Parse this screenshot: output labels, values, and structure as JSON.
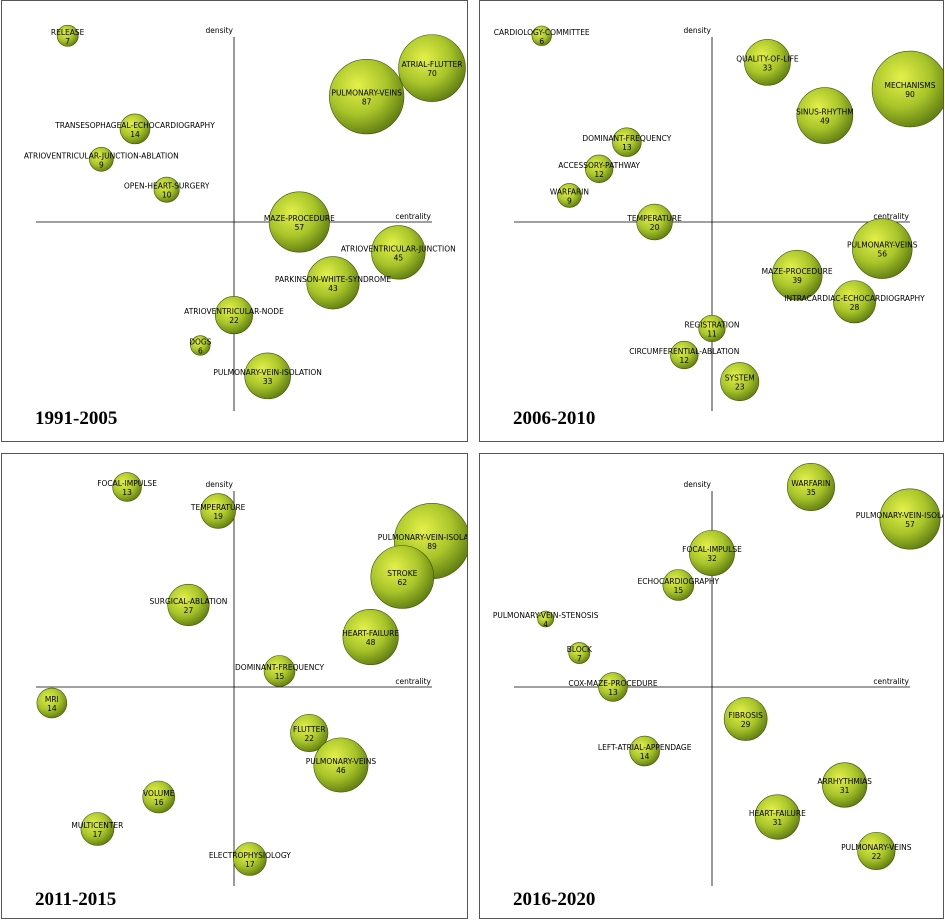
{
  "colors": {
    "bubble_inner": "#e4f04a",
    "bubble_mid": "#a9c52a",
    "bubble_outer": "#5d7a10",
    "bubble_stroke": "#3e5208",
    "axis": "#000000"
  },
  "chart_data": [
    {
      "type": "scatter",
      "title": "1991-2005",
      "xlabel": "centrality",
      "ylabel": "density",
      "points": [
        {
          "label": "RELEASE",
          "value": 7,
          "x": -0.84,
          "y": 0.98
        },
        {
          "label": "ATRIAL-FLUTTER",
          "value": 70,
          "x": 1.0,
          "y": 0.81
        },
        {
          "label": "PULMONARY-VEINS",
          "value": 87,
          "x": 0.67,
          "y": 0.66
        },
        {
          "label": "TRANSESOPHAGEAL-ECHOCARDIOGRAPHY",
          "value": 14,
          "x": -0.5,
          "y": 0.49
        },
        {
          "label": "ATRIOVENTRICULAR-JUNCTION-ABLATION",
          "value": 9,
          "x": -0.67,
          "y": 0.33
        },
        {
          "label": "OPEN-HEART-SURGERY",
          "value": 10,
          "x": -0.34,
          "y": 0.17
        },
        {
          "label": "MAZE-PROCEDURE",
          "value": 57,
          "x": 0.33,
          "y": 0.0
        },
        {
          "label": "ATRIOVENTRICULAR-JUNCTION",
          "value": 45,
          "x": 0.83,
          "y": -0.16
        },
        {
          "label": "PARKINSON-WHITE-SYNDROME",
          "value": 43,
          "x": 0.5,
          "y": -0.32
        },
        {
          "label": "ATRIOVENTRICULAR-NODE",
          "value": 22,
          "x": 0.0,
          "y": -0.49
        },
        {
          "label": "DOGS",
          "value": 6,
          "x": -0.17,
          "y": -0.65
        },
        {
          "label": "PULMONARY-VEIN-ISOLATION",
          "value": 33,
          "x": 0.17,
          "y": -0.81
        }
      ]
    },
    {
      "type": "scatter",
      "title": "2006-2010",
      "xlabel": "centrality",
      "ylabel": "density",
      "points": [
        {
          "label": "CARDIOLOGY-COMMITTEE",
          "value": 6,
          "x": -0.86,
          "y": 0.98
        },
        {
          "label": "QUALITY-OF-LIFE",
          "value": 33,
          "x": 0.28,
          "y": 0.84
        },
        {
          "label": "MECHANISMS",
          "value": 90,
          "x": 1.0,
          "y": 0.7
        },
        {
          "label": "SINUS-RHYTHM",
          "value": 49,
          "x": 0.57,
          "y": 0.56
        },
        {
          "label": "DOMINANT-FREQUENCY",
          "value": 13,
          "x": -0.43,
          "y": 0.42
        },
        {
          "label": "ACCESSORY-PATHWAY",
          "value": 12,
          "x": -0.57,
          "y": 0.28
        },
        {
          "label": "WARFARIN",
          "value": 9,
          "x": -0.72,
          "y": 0.14
        },
        {
          "label": "TEMPERATURE",
          "value": 20,
          "x": -0.29,
          "y": 0.0
        },
        {
          "label": "PULMONARY-VEINS",
          "value": 56,
          "x": 0.86,
          "y": -0.14
        },
        {
          "label": "MAZE-PROCEDURE",
          "value": 39,
          "x": 0.43,
          "y": -0.28
        },
        {
          "label": "INTRACARDIAC-ECHOCARDIOGRAPHY",
          "value": 28,
          "x": 0.72,
          "y": -0.42
        },
        {
          "label": "REGISTRATION",
          "value": 11,
          "x": 0.0,
          "y": -0.56
        },
        {
          "label": "CIRCUMFERENTIAL-ABLATION",
          "value": 12,
          "x": -0.14,
          "y": -0.7
        },
        {
          "label": "SYSTEM",
          "value": 23,
          "x": 0.14,
          "y": -0.84
        }
      ]
    },
    {
      "type": "scatter",
      "title": "2011-2015",
      "xlabel": "centrality",
      "ylabel": "density",
      "points": [
        {
          "label": "FOCAL-IMPULSE",
          "value": 13,
          "x": -0.54,
          "y": 1.0
        },
        {
          "label": "TEMPERATURE",
          "value": 19,
          "x": -0.08,
          "y": 0.88
        },
        {
          "label": "PULMONARY-VEIN-ISOLATION",
          "value": 89,
          "x": 1.0,
          "y": 0.73
        },
        {
          "label": "STROKE",
          "value": 62,
          "x": 0.85,
          "y": 0.55
        },
        {
          "label": "SURGICAL-ABLATION",
          "value": 27,
          "x": -0.23,
          "y": 0.41
        },
        {
          "label": "HEART-FAILURE",
          "value": 48,
          "x": 0.69,
          "y": 0.25
        },
        {
          "label": "DOMINANT-FREQUENCY",
          "value": 15,
          "x": 0.23,
          "y": 0.08
        },
        {
          "label": "MRI",
          "value": 14,
          "x": -0.92,
          "y": -0.08
        },
        {
          "label": "FLUTTER",
          "value": 22,
          "x": 0.38,
          "y": -0.23
        },
        {
          "label": "PULMONARY-VEINS",
          "value": 46,
          "x": 0.54,
          "y": -0.39
        },
        {
          "label": "VOLUME",
          "value": 16,
          "x": -0.38,
          "y": -0.55
        },
        {
          "label": "MULTICENTER",
          "value": 17,
          "x": -0.69,
          "y": -0.71
        },
        {
          "label": "ELECTROPHYSIOLOGY",
          "value": 17,
          "x": 0.08,
          "y": -0.86
        }
      ]
    },
    {
      "type": "scatter",
      "title": "2016-2020",
      "xlabel": "centrality",
      "ylabel": "density",
      "points": [
        {
          "label": "WARFARIN",
          "value": 35,
          "x": 0.5,
          "y": 1.0
        },
        {
          "label": "PULMONARY-VEIN-ISOLATION",
          "value": 57,
          "x": 1.0,
          "y": 0.84
        },
        {
          "label": "FOCAL-IMPULSE",
          "value": 32,
          "x": 0.0,
          "y": 0.67
        },
        {
          "label": "ECHOCARDIOGRAPHY",
          "value": 15,
          "x": -0.17,
          "y": 0.51
        },
        {
          "label": "PULMONARY-VEIN-STENOSIS",
          "value": 4,
          "x": -0.84,
          "y": 0.34
        },
        {
          "label": "BLOCK",
          "value": 7,
          "x": -0.67,
          "y": 0.17
        },
        {
          "label": "COX-MAZE-PROCEDURE",
          "value": 13,
          "x": -0.5,
          "y": 0.0
        },
        {
          "label": "FIBROSIS",
          "value": 29,
          "x": 0.17,
          "y": -0.16
        },
        {
          "label": "LEFT-ATRIAL-APPENDAGE",
          "value": 14,
          "x": -0.34,
          "y": -0.32
        },
        {
          "label": "ARRHYTHMIAS",
          "value": 31,
          "x": 0.67,
          "y": -0.49
        },
        {
          "label": "HEART-FAILURE",
          "value": 31,
          "x": 0.33,
          "y": -0.65
        },
        {
          "label": "PULMONARY-VEINS",
          "value": 22,
          "x": 0.83,
          "y": -0.82
        }
      ]
    }
  ]
}
